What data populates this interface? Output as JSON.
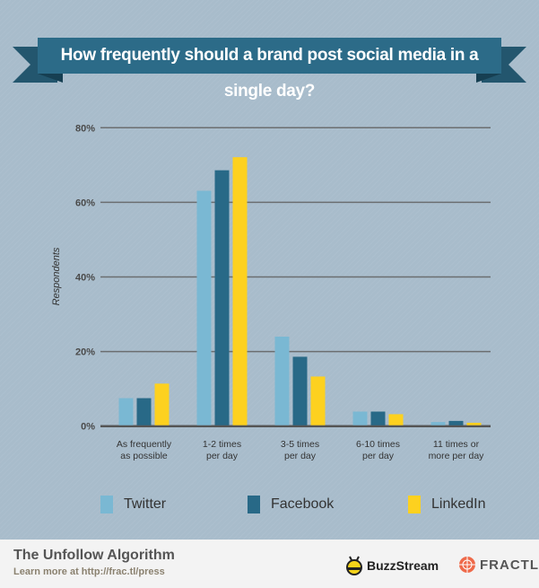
{
  "chart_data": {
    "type": "bar",
    "title": "How frequently should a brand post social media in a single day?",
    "ylabel": "Respondents",
    "xlabel": "",
    "ylim": [
      0,
      80
    ],
    "yticks": [
      "0%",
      "20%",
      "40%",
      "60%",
      "80%"
    ],
    "categories": [
      [
        "As frequently",
        "as possible"
      ],
      [
        "1-2 times",
        "per day"
      ],
      [
        "3-5 times",
        "per day"
      ],
      [
        "6-10 times",
        "per day"
      ],
      [
        "11 times or",
        "more per day"
      ]
    ],
    "series": [
      {
        "name": "Twitter",
        "color": "#7ab8d3",
        "values": [
          7.5,
          63.1,
          24.0,
          3.9,
          1.1
        ]
      },
      {
        "name": "Facebook",
        "color": "#286987",
        "values": [
          7.5,
          68.6,
          18.6,
          3.9,
          1.4
        ]
      },
      {
        "name": "LinkedIn",
        "color": "#fdd11f",
        "values": [
          11.4,
          72.1,
          13.3,
          3.2,
          0.9
        ]
      }
    ],
    "grid": true,
    "legend": "bottom"
  },
  "footer": {
    "title": "The Unfollow Algorithm",
    "subtitle": "Learn more at http://frac.tl/press",
    "logo1": "BuzzStream",
    "logo2": "FRACTL"
  }
}
